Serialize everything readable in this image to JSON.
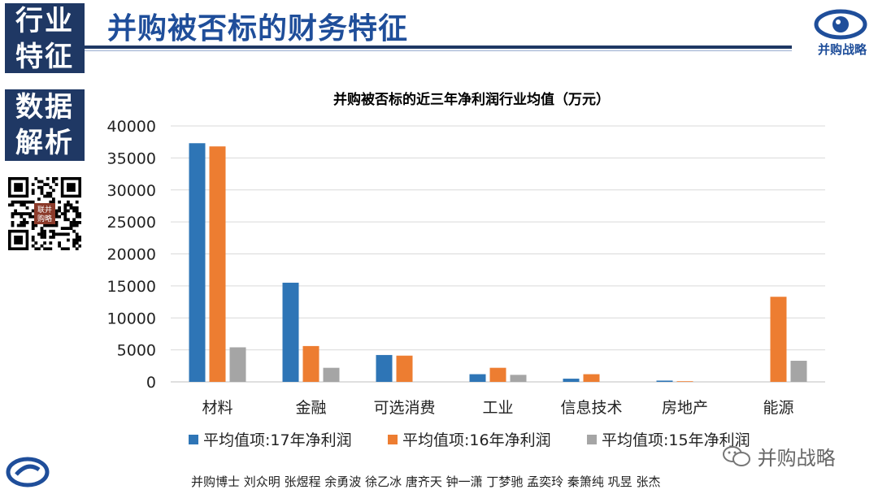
{
  "side": {
    "block1_line1": "行业",
    "block1_line2": "特征",
    "block2_line1": "数据",
    "block2_line2": "解析"
  },
  "header": {
    "title": "并购被否标的财务特征",
    "logo_text": "并购战略"
  },
  "qr_badge": "联并购略",
  "footer": {
    "authors": "并购博士 刘众明 张煜程 余勇波 徐乙冰 唐齐天 钟一潇 丁梦驰 孟奕玲 秦箫纯 巩昱 张杰",
    "wechat_label": "并购战略"
  },
  "colors": {
    "navy": "#1f3864",
    "blue": "#2e75b6",
    "orange": "#ed7d31",
    "gray": "#a5a5a5"
  },
  "chart_data": {
    "type": "bar",
    "title": "并购被否标的近三年净利润行业均值（万元）",
    "categories": [
      "材料",
      "金融",
      "可选消费",
      "工业",
      "信息技术",
      "房地产",
      "能源"
    ],
    "series": [
      {
        "name": "平均值项:17年净利润",
        "color": "#2e75b6",
        "values": [
          37300,
          15500,
          4200,
          1200,
          500,
          200,
          0
        ]
      },
      {
        "name": "平均值项:16年净利润",
        "color": "#ed7d31",
        "values": [
          36800,
          5600,
          4100,
          2200,
          1200,
          100,
          13300
        ]
      },
      {
        "name": "平均值项:15年净利润",
        "color": "#a5a5a5",
        "values": [
          5400,
          2200,
          0,
          1100,
          0,
          0,
          3300
        ]
      }
    ],
    "yticks": [
      0,
      5000,
      10000,
      15000,
      20000,
      25000,
      30000,
      35000,
      40000
    ],
    "ylim": [
      0,
      40000
    ],
    "grid": true,
    "legend": "bottom"
  }
}
